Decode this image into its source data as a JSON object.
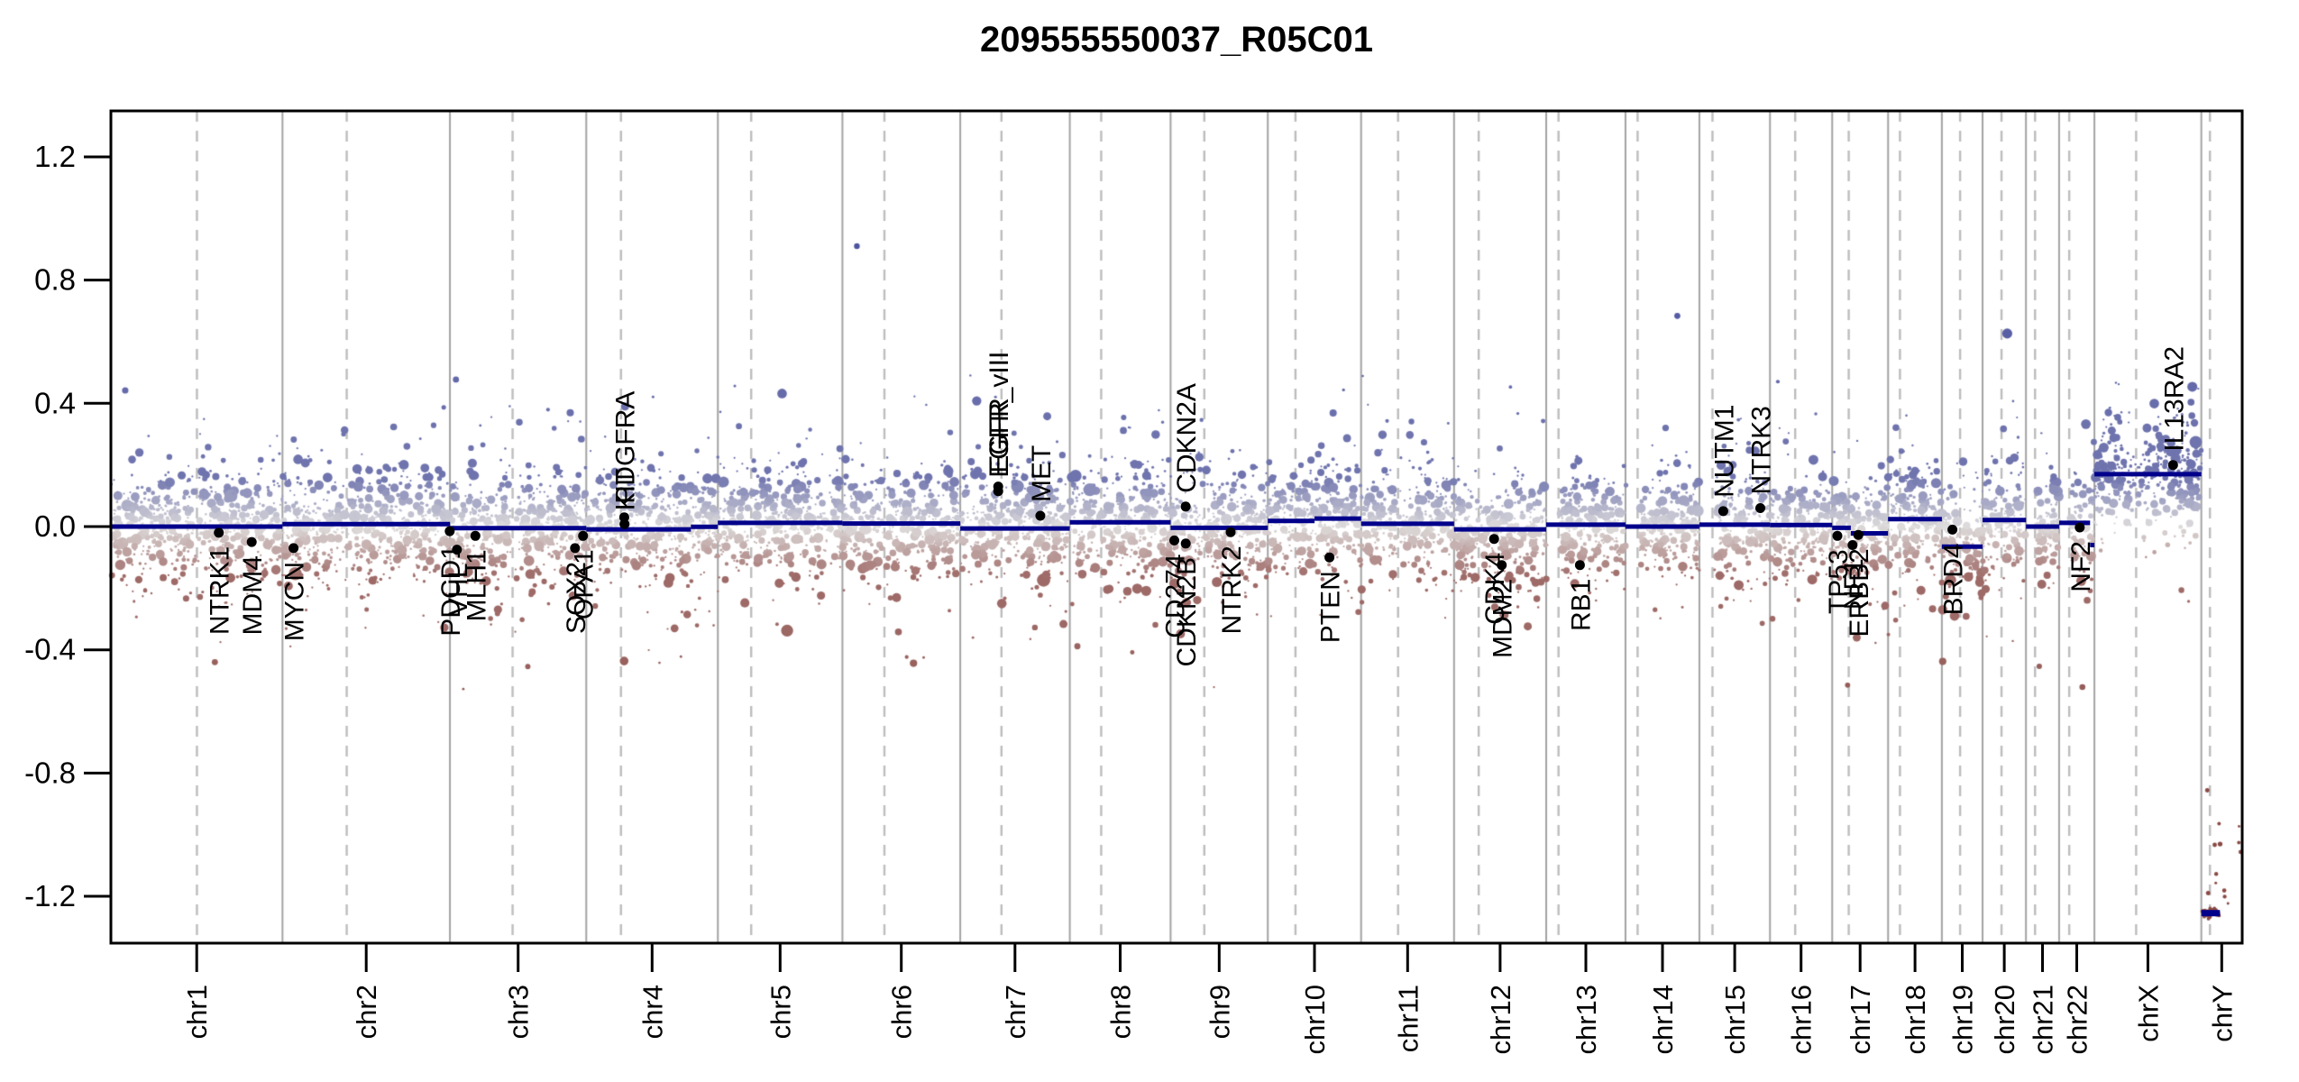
{
  "title": "209555550037_R05C01",
  "chart_data": {
    "type": "scatter",
    "title": "209555550037_R05C01",
    "subtitle": "",
    "xlabel": "",
    "ylabel": "",
    "ylim": [
      -1.35,
      1.35
    ],
    "grid": "chromosome boundaries solid, centromeres dashed",
    "legend": "none",
    "y_ticks": [
      {
        "value": 1.2,
        "label": "1.2"
      },
      {
        "value": 0.8,
        "label": "0.8"
      },
      {
        "value": 0.4,
        "label": "0.4"
      },
      {
        "value": 0.0,
        "label": "0.0"
      },
      {
        "value": -0.4,
        "label": "-0.4"
      },
      {
        "value": -0.8,
        "label": "-0.8"
      },
      {
        "value": -1.2,
        "label": "-1.2"
      }
    ],
    "x_tick_labels": [
      "chr1",
      "chr2",
      "chr3",
      "chr4",
      "chr5",
      "chr6",
      "chr7",
      "chr8",
      "chr9",
      "chr10",
      "chr11",
      "chr12",
      "chr13",
      "chr14",
      "chr15",
      "chr16",
      "chr17",
      "chr18",
      "chr19",
      "chr20",
      "chr21",
      "chr22",
      "chrX",
      "chrY"
    ],
    "chromosomes": [
      {
        "name": "chr1",
        "length_mb": 249.25,
        "centromere_mb": 125.0,
        "acrocentric": false
      },
      {
        "name": "chr2",
        "length_mb": 243.2,
        "centromere_mb": 93.3,
        "acrocentric": false
      },
      {
        "name": "chr3",
        "length_mb": 198.02,
        "centromere_mb": 91.0,
        "acrocentric": false
      },
      {
        "name": "chr4",
        "length_mb": 191.15,
        "centromere_mb": 50.4,
        "acrocentric": false
      },
      {
        "name": "chr5",
        "length_mb": 180.92,
        "centromere_mb": 48.4,
        "acrocentric": false
      },
      {
        "name": "chr6",
        "length_mb": 171.12,
        "centromere_mb": 61.0,
        "acrocentric": false
      },
      {
        "name": "chr7",
        "length_mb": 159.14,
        "centromere_mb": 59.9,
        "acrocentric": false
      },
      {
        "name": "chr8",
        "length_mb": 146.36,
        "centromere_mb": 45.6,
        "acrocentric": false
      },
      {
        "name": "chr9",
        "length_mb": 141.21,
        "centromere_mb": 49.0,
        "acrocentric": false
      },
      {
        "name": "chr10",
        "length_mb": 135.53,
        "centromere_mb": 40.2,
        "acrocentric": false
      },
      {
        "name": "chr11",
        "length_mb": 135.01,
        "centromere_mb": 53.7,
        "acrocentric": false
      },
      {
        "name": "chr12",
        "length_mb": 133.85,
        "centromere_mb": 35.8,
        "acrocentric": false
      },
      {
        "name": "chr13",
        "length_mb": 115.17,
        "centromere_mb": 17.9,
        "acrocentric": true
      },
      {
        "name": "chr14",
        "length_mb": 107.35,
        "centromere_mb": 17.6,
        "acrocentric": true
      },
      {
        "name": "chr15",
        "length_mb": 102.53,
        "centromere_mb": 19.0,
        "acrocentric": true
      },
      {
        "name": "chr16",
        "length_mb": 90.35,
        "centromere_mb": 36.6,
        "acrocentric": false
      },
      {
        "name": "chr17",
        "length_mb": 81.2,
        "centromere_mb": 24.0,
        "acrocentric": false
      },
      {
        "name": "chr18",
        "length_mb": 78.08,
        "centromere_mb": 17.2,
        "acrocentric": false
      },
      {
        "name": "chr19",
        "length_mb": 59.13,
        "centromere_mb": 26.5,
        "acrocentric": false
      },
      {
        "name": "chr20",
        "length_mb": 63.03,
        "centromere_mb": 27.5,
        "acrocentric": false
      },
      {
        "name": "chr21",
        "length_mb": 48.13,
        "centromere_mb": 13.2,
        "acrocentric": true
      },
      {
        "name": "chr22",
        "length_mb": 51.3,
        "centromere_mb": 14.7,
        "acrocentric": true
      },
      {
        "name": "chrX",
        "length_mb": 155.27,
        "centromere_mb": 60.6,
        "acrocentric": false
      },
      {
        "name": "chrY",
        "length_mb": 59.37,
        "centromere_mb": 12.5,
        "acrocentric": false
      }
    ],
    "segments": [
      {
        "chrom": "chr1",
        "start_mb": 0,
        "end_mb": 249.25,
        "value": 0.0
      },
      {
        "chrom": "chr2",
        "start_mb": 0,
        "end_mb": 243.2,
        "value": 0.008
      },
      {
        "chrom": "chr3",
        "start_mb": 0,
        "end_mb": 198.02,
        "value": -0.005
      },
      {
        "chrom": "chr4",
        "start_mb": 0,
        "end_mb": 152,
        "value": -0.009
      },
      {
        "chrom": "chr4",
        "start_mb": 152,
        "end_mb": 191.15,
        "value": -0.001
      },
      {
        "chrom": "chr5",
        "start_mb": 0,
        "end_mb": 180.92,
        "value": 0.012
      },
      {
        "chrom": "chr6",
        "start_mb": 0,
        "end_mb": 171.12,
        "value": 0.01
      },
      {
        "chrom": "chr7",
        "start_mb": 0,
        "end_mb": 159.14,
        "value": -0.006
      },
      {
        "chrom": "chr8",
        "start_mb": 0,
        "end_mb": 146.36,
        "value": 0.014
      },
      {
        "chrom": "chr9",
        "start_mb": 0,
        "end_mb": 141.21,
        "value": -0.004
      },
      {
        "chrom": "chr10",
        "start_mb": 0,
        "end_mb": 68,
        "value": 0.018
      },
      {
        "chrom": "chr10",
        "start_mb": 68,
        "end_mb": 135.53,
        "value": 0.026
      },
      {
        "chrom": "chr11",
        "start_mb": 0,
        "end_mb": 135.01,
        "value": 0.009
      },
      {
        "chrom": "chr12",
        "start_mb": 0,
        "end_mb": 133.85,
        "value": -0.009
      },
      {
        "chrom": "chr13",
        "start_mb": 0,
        "end_mb": 115.17,
        "value": 0.006
      },
      {
        "chrom": "chr14",
        "start_mb": 0,
        "end_mb": 107.35,
        "value": 0.0
      },
      {
        "chrom": "chr15",
        "start_mb": 0,
        "end_mb": 102.53,
        "value": 0.006
      },
      {
        "chrom": "chr16",
        "start_mb": 0,
        "end_mb": 90.35,
        "value": 0.005
      },
      {
        "chrom": "chr17",
        "start_mb": 0,
        "end_mb": 27,
        "value": -0.004
      },
      {
        "chrom": "chr17",
        "start_mb": 27,
        "end_mb": 81.2,
        "value": -0.022
      },
      {
        "chrom": "chr18",
        "start_mb": 0,
        "end_mb": 78.08,
        "value": 0.024
      },
      {
        "chrom": "chr19",
        "start_mb": 0,
        "end_mb": 59.13,
        "value": -0.065
      },
      {
        "chrom": "chr20",
        "start_mb": 0,
        "end_mb": 63.03,
        "value": 0.021
      },
      {
        "chrom": "chr21",
        "start_mb": 0,
        "end_mb": 48.13,
        "value": 0.0
      },
      {
        "chrom": "chr22",
        "start_mb": 0,
        "end_mb": 45,
        "value": 0.012
      },
      {
        "chrom": "chr22",
        "start_mb": 45,
        "end_mb": 51.3,
        "value": -0.06
      },
      {
        "chrom": "chrX",
        "start_mb": 0,
        "end_mb": 155.27,
        "value": 0.17
      },
      {
        "chrom": "chrY",
        "start_mb": 0,
        "end_mb": 27,
        "value": -1.255
      }
    ],
    "genes": [
      {
        "name": "NTRK1",
        "chrom": "chr1",
        "pos_mb": 156.8,
        "value": -0.02
      },
      {
        "name": "MDM4",
        "chrom": "chr1",
        "pos_mb": 204.5,
        "value": -0.05
      },
      {
        "name": "MYCN",
        "chrom": "chr2",
        "pos_mb": 16.1,
        "value": -0.07
      },
      {
        "name": "PDCD1",
        "chrom": "chr2",
        "pos_mb": 242.8,
        "value": -0.015
      },
      {
        "name": "VHL",
        "chrom": "chr3",
        "pos_mb": 10.2,
        "value": -0.075
      },
      {
        "name": "MLH1",
        "chrom": "chr3",
        "pos_mb": 37.0,
        "value": -0.03
      },
      {
        "name": "SOX2",
        "chrom": "chr3",
        "pos_mb": 181.7,
        "value": -0.07
      },
      {
        "name": "OPA1",
        "chrom": "chr3",
        "pos_mb": 193.3,
        "value": -0.03
      },
      {
        "name": "PDGFRA",
        "chrom": "chr4",
        "pos_mb": 55.1,
        "value": 0.03
      },
      {
        "name": "KIT",
        "chrom": "chr4",
        "pos_mb": 55.5,
        "value": 0.008
      },
      {
        "name": "EGFR",
        "chrom": "chr7",
        "pos_mb": 55.1,
        "value": 0.13
      },
      {
        "name": "EGFR_vIII",
        "chrom": "chr7",
        "pos_mb": 55.2,
        "value": 0.115
      },
      {
        "name": "MET",
        "chrom": "chr7",
        "pos_mb": 116.3,
        "value": 0.035
      },
      {
        "name": "CD274",
        "chrom": "chr9",
        "pos_mb": 5.4,
        "value": -0.045
      },
      {
        "name": "CDKN2A",
        "chrom": "chr9",
        "pos_mb": 21.9,
        "value": 0.065
      },
      {
        "name": "CDKN2B",
        "chrom": "chr9",
        "pos_mb": 22.0,
        "value": -0.055
      },
      {
        "name": "NTRK2",
        "chrom": "chr9",
        "pos_mb": 87.3,
        "value": -0.018
      },
      {
        "name": "PTEN",
        "chrom": "chr10",
        "pos_mb": 89.6,
        "value": -0.1
      },
      {
        "name": "CDK4",
        "chrom": "chr12",
        "pos_mb": 58.1,
        "value": -0.04
      },
      {
        "name": "MDM2",
        "chrom": "chr12",
        "pos_mb": 69.2,
        "value": -0.125
      },
      {
        "name": "RB1",
        "chrom": "chr13",
        "pos_mb": 48.9,
        "value": -0.125
      },
      {
        "name": "NUTM1",
        "chrom": "chr15",
        "pos_mb": 34.6,
        "value": 0.05
      },
      {
        "name": "NTRK3",
        "chrom": "chr15",
        "pos_mb": 88.4,
        "value": 0.06
      },
      {
        "name": "TP53",
        "chrom": "chr17",
        "pos_mb": 7.6,
        "value": -0.03
      },
      {
        "name": "NF1",
        "chrom": "chr17",
        "pos_mb": 29.5,
        "value": -0.06
      },
      {
        "name": "ERBB2",
        "chrom": "chr17",
        "pos_mb": 37.9,
        "value": -0.027
      },
      {
        "name": "BRD4",
        "chrom": "chr19",
        "pos_mb": 15.4,
        "value": -0.01
      },
      {
        "name": "NF2",
        "chrom": "chr22",
        "pos_mb": 30.0,
        "value": -0.003
      },
      {
        "name": "IL13RA2",
        "chrom": "chrX",
        "pos_mb": 114.2,
        "value": 0.2
      }
    ],
    "outlier_points": [
      {
        "chrom": "chr6",
        "pos_mb": 21.0,
        "value": 0.91,
        "r": 3.2
      },
      {
        "chrom": "chr4",
        "pos_mb": 56.3,
        "value": 0.39,
        "r": 4.6
      },
      {
        "chrom": "chrX",
        "pos_mb": 20.3,
        "value": 0.37,
        "r": 4.2
      },
      {
        "chrom": "chr1",
        "pos_mb": 151.0,
        "value": -0.44,
        "r": 3.4
      },
      {
        "chrom": "chr19",
        "pos_mb": 1.2,
        "value": -0.27,
        "r": 5.2
      }
    ],
    "chrY_scatter": {
      "diffuse_points": 13,
      "diffuse_center": -1.08,
      "diffuse_sd": 0.12,
      "cluster_points": 28,
      "cluster_value": -1.253,
      "cluster_sd": 0.007,
      "cluster_end_mb": 27
    },
    "colors": {
      "gain_point": "#6f74ae",
      "gain_dark": "#4d54a0",
      "loss_point": "#9e6a67",
      "loss_dark": "#8a4a44",
      "near_zero_point": "#dedcdc",
      "segment_line": "#00008b",
      "gene_marker": "#000000",
      "chromosome_boundary": "#a3a3a3",
      "centromere_dash": "#bdbdbd",
      "plot_border": "#000000",
      "background": "#ffffff"
    }
  }
}
